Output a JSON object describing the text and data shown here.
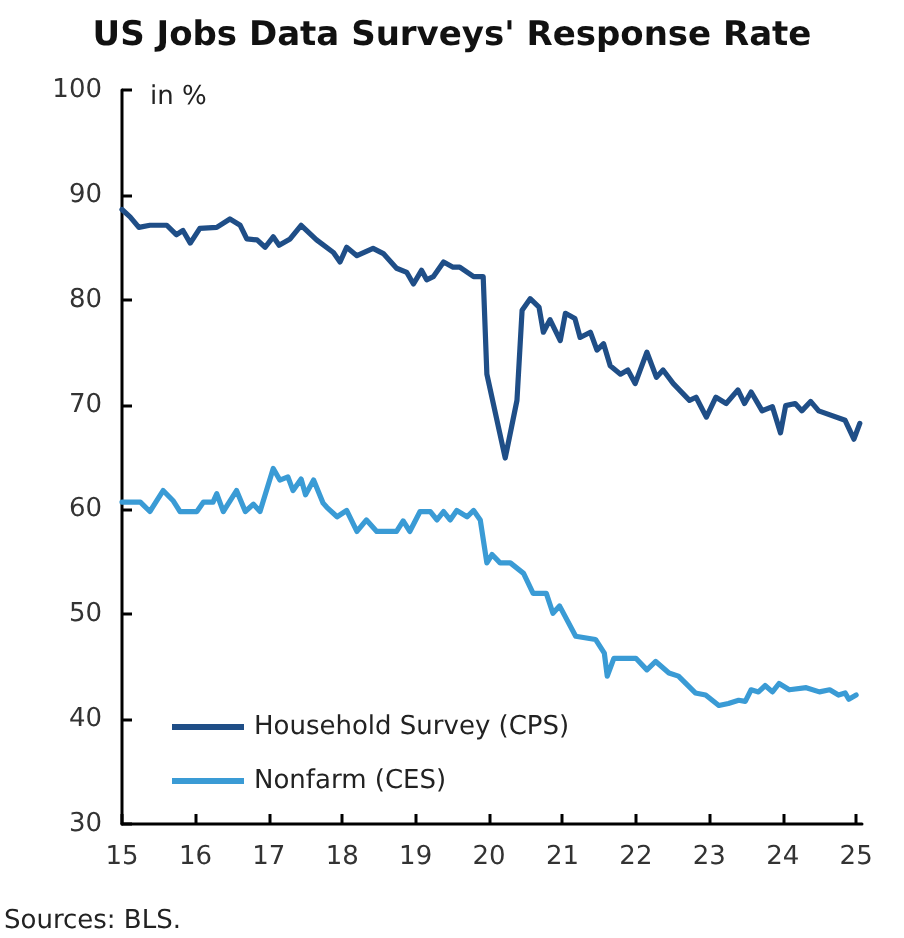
{
  "chart_data": {
    "type": "line",
    "title": "US Jobs Data Surveys' Response Rate",
    "ylabel": "in %",
    "annotations": [
      "Sources: BLS."
    ],
    "xlim": [
      15,
      25.08
    ],
    "xticks": [
      15,
      16,
      17,
      18,
      19,
      20,
      21,
      22,
      23,
      24,
      25
    ],
    "ylim": [
      30,
      100
    ],
    "yticks": [
      30,
      40,
      50,
      60,
      70,
      80,
      90,
      100
    ],
    "grid": false,
    "legend": "bottom left",
    "marker": "none",
    "line_style": "solid",
    "series": [
      {
        "name": "Household Survey (CPS)",
        "color": "#1f4e87",
        "x": [
          15.0,
          15.11,
          15.23,
          15.38,
          15.61,
          15.74,
          15.83,
          15.93,
          16.06,
          16.29,
          16.47,
          16.61,
          16.7,
          16.84,
          16.95,
          17.06,
          17.14,
          17.29,
          17.44,
          17.65,
          17.88,
          17.97,
          18.06,
          18.2,
          18.42,
          18.56,
          18.74,
          18.88,
          18.97,
          19.08,
          19.15,
          19.24,
          19.38,
          19.51,
          19.6,
          19.79,
          19.92,
          19.97,
          20.22,
          20.38,
          20.45,
          20.56,
          20.68,
          20.74,
          20.83,
          20.97,
          21.04,
          21.17,
          21.24,
          21.38,
          21.47,
          21.56,
          21.65,
          21.79,
          21.89,
          21.99,
          22.15,
          22.28,
          22.37,
          22.51,
          22.73,
          22.82,
          22.96,
          23.09,
          23.23,
          23.39,
          23.48,
          23.57,
          23.72,
          23.86,
          23.97,
          24.04,
          24.17,
          24.26,
          24.38,
          24.49,
          24.85,
          24.97,
          25.05
        ],
        "values": [
          88.6,
          87.9,
          86.9,
          87.1,
          87.1,
          86.2,
          86.6,
          85.4,
          86.8,
          86.9,
          87.7,
          87.1,
          85.8,
          85.7,
          85.0,
          86.0,
          85.2,
          85.8,
          87.1,
          85.7,
          84.5,
          83.6,
          85.0,
          84.2,
          84.9,
          84.4,
          83.0,
          82.6,
          81.5,
          82.8,
          81.9,
          82.2,
          83.6,
          83.1,
          83.1,
          82.2,
          82.2,
          72.9,
          64.9,
          70.4,
          79.0,
          80.1,
          79.3,
          76.9,
          78.1,
          76.1,
          78.7,
          78.2,
          76.4,
          76.9,
          75.2,
          75.8,
          73.7,
          72.9,
          73.3,
          72.0,
          75.0,
          72.6,
          73.3,
          72.0,
          70.4,
          70.7,
          68.8,
          70.7,
          70.1,
          71.4,
          70.1,
          71.2,
          69.4,
          69.8,
          67.3,
          69.9,
          70.1,
          69.4,
          70.3,
          69.4,
          68.5,
          66.7,
          68.2
        ]
      },
      {
        "name": "Nonfarm (CES)",
        "color": "#3a9bd5",
        "x": [
          15.0,
          15.25,
          15.38,
          15.56,
          15.7,
          15.79,
          16.02,
          16.11,
          16.24,
          16.29,
          16.38,
          16.56,
          16.68,
          16.79,
          16.88,
          17.06,
          17.15,
          17.26,
          17.33,
          17.44,
          17.5,
          17.61,
          17.74,
          17.79,
          17.93,
          18.06,
          18.2,
          18.33,
          18.47,
          18.74,
          18.83,
          18.92,
          19.06,
          19.2,
          19.29,
          19.38,
          19.47,
          19.56,
          19.7,
          19.79,
          19.88,
          19.97,
          20.04,
          20.15,
          20.29,
          20.47,
          20.6,
          20.78,
          20.87,
          20.96,
          21.18,
          21.45,
          21.57,
          21.61,
          21.7,
          22.0,
          22.15,
          22.27,
          22.45,
          22.58,
          22.81,
          22.95,
          23.13,
          23.26,
          23.4,
          23.49,
          23.57,
          23.67,
          23.76,
          23.86,
          23.95,
          24.09,
          24.32,
          24.5,
          24.64,
          24.76,
          24.85,
          24.9,
          25.0
        ],
        "values": [
          60.7,
          60.7,
          59.8,
          61.8,
          60.8,
          59.8,
          59.8,
          60.7,
          60.7,
          61.5,
          59.8,
          61.8,
          59.8,
          60.5,
          59.8,
          63.9,
          62.8,
          63.1,
          61.8,
          62.9,
          61.4,
          62.8,
          60.6,
          60.2,
          59.3,
          59.9,
          57.9,
          59.0,
          57.9,
          57.9,
          58.9,
          57.9,
          59.8,
          59.8,
          59.0,
          59.8,
          59.0,
          59.9,
          59.3,
          59.9,
          59.0,
          54.9,
          55.7,
          54.9,
          54.9,
          53.9,
          52.0,
          52.0,
          50.1,
          50.8,
          47.9,
          47.6,
          46.3,
          44.1,
          45.8,
          45.8,
          44.7,
          45.5,
          44.4,
          44.1,
          42.5,
          42.3,
          41.3,
          41.5,
          41.8,
          41.7,
          42.8,
          42.6,
          43.2,
          42.6,
          43.4,
          42.8,
          43.0,
          42.6,
          42.8,
          42.3,
          42.5,
          41.9,
          42.3
        ]
      }
    ]
  }
}
